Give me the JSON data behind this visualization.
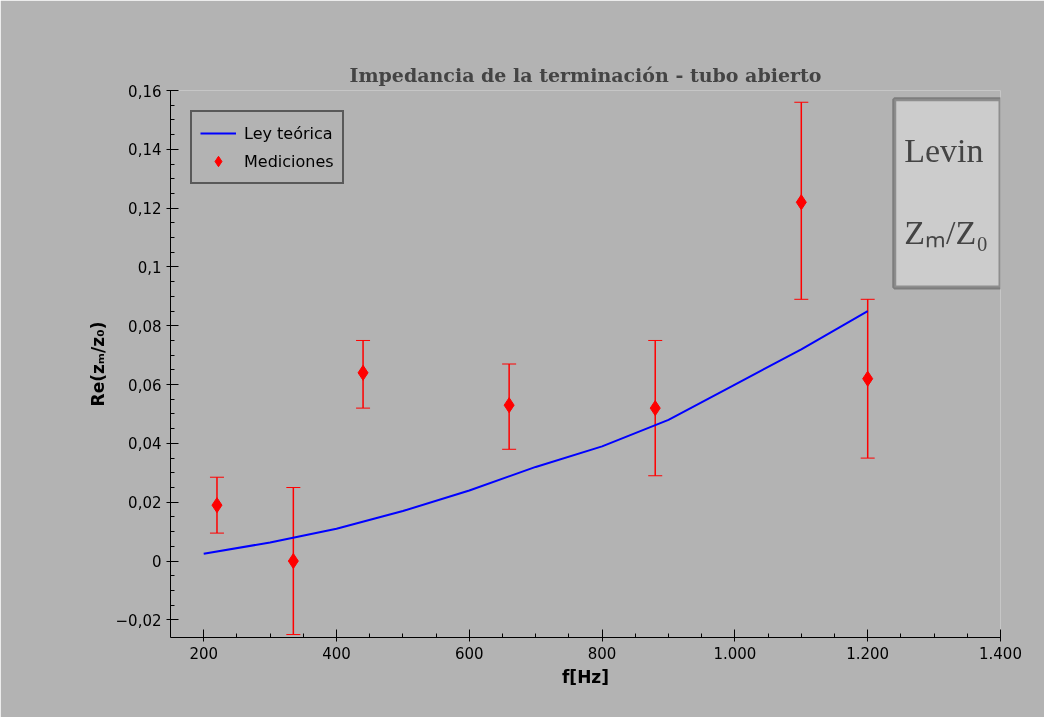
{
  "chart_data": {
    "type": "line",
    "title": "Impedancia de la terminación - tubo abierto",
    "xlabel": "f[Hz]",
    "ylabel": "Re(zₘ/z₀)",
    "xlim": [
      150,
      1400
    ],
    "xticks": [
      200,
      400,
      600,
      {
        "value": 800,
        "label": "800"
      },
      {
        "value": 1000,
        "label": "1.000"
      },
      {
        "value": 1200,
        "label": "1.200"
      },
      {
        "value": 1400,
        "label": "1.400"
      }
    ],
    "ylim": [
      -0.026,
      0.16
    ],
    "yticks": [
      {
        "value": -0.02,
        "label": "−0,02"
      },
      {
        "value": 0,
        "label": "0"
      },
      {
        "value": 0.02,
        "label": "0,02"
      },
      {
        "value": 0.04,
        "label": "0,04"
      },
      {
        "value": 0.06,
        "label": "0,06"
      },
      {
        "value": 0.08,
        "label": "0,08"
      },
      {
        "value": 0.1,
        "label": "0,1"
      },
      {
        "value": 0.12,
        "label": "0,12"
      },
      {
        "value": 0.14,
        "label": "0,14"
      },
      {
        "value": 0.16,
        "label": "0,16"
      }
    ],
    "grid": false,
    "legend": "top left",
    "annotations": [
      "Levin",
      "Zₘ/Z₀"
    ],
    "series": [
      {
        "name": "Ley teórica",
        "color": "#0000ff",
        "marker": "none",
        "line_style": "solid",
        "x": [
          200,
          300,
          400,
          500,
          600,
          700,
          800,
          900,
          1000,
          1100,
          1200
        ],
        "values": [
          0.0025,
          0.0063,
          0.011,
          0.017,
          0.024,
          0.032,
          0.039,
          0.048,
          0.06,
          0.072,
          0.085
        ]
      },
      {
        "name": "Mediciones",
        "type": "scatter",
        "color": "#ff0000",
        "marker": "diamond",
        "x": [
          220,
          335,
          440,
          660,
          880,
          1100,
          1200
        ],
        "values": [
          0.019,
          0.0,
          0.064,
          0.053,
          0.052,
          0.122,
          0.062
        ],
        "errors": [
          [
            0.0095,
            0.0285
          ],
          [
            -0.025,
            0.025
          ],
          [
            0.052,
            0.075
          ],
          [
            0.038,
            0.067
          ],
          [
            0.029,
            0.075
          ],
          [
            0.089,
            0.156
          ],
          [
            0.035,
            0.089
          ]
        ]
      }
    ]
  }
}
